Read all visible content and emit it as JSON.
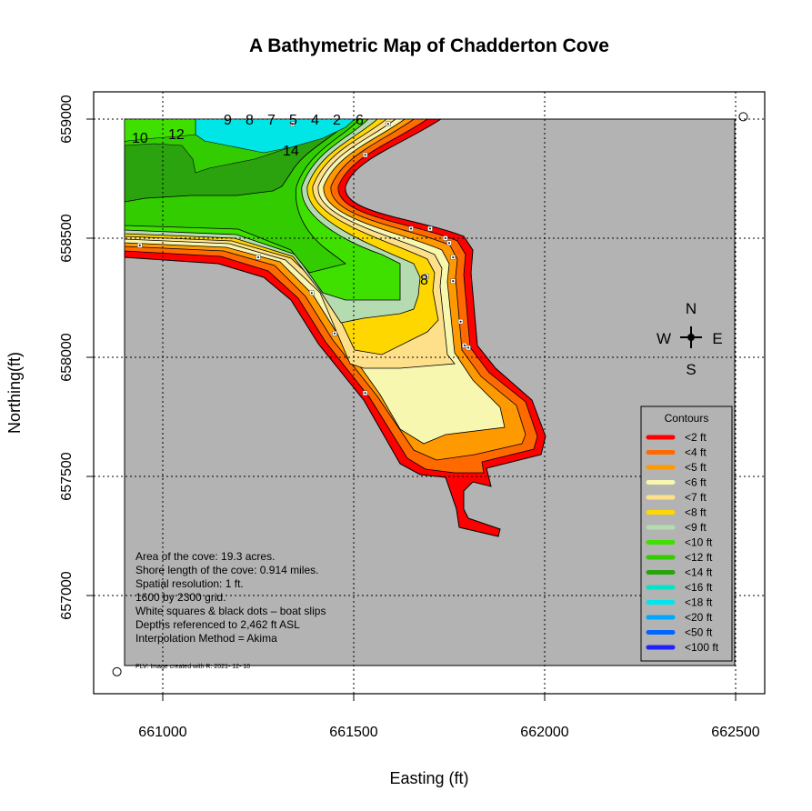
{
  "chart_data": {
    "type": "contour-map",
    "title": "A Bathymetric Map of  Chadderton Cove",
    "xlabel": "Easting (ft)",
    "ylabel": "Northing(ft)",
    "xlim": [
      660820,
      662580
    ],
    "ylim": [
      656630,
      659130
    ],
    "x_ticks": [
      "661000",
      "661500",
      "662000",
      "662500"
    ],
    "y_ticks": [
      "657000",
      "657500",
      "658000",
      "658500",
      "659000"
    ],
    "grid": "dotted",
    "land_color": "#b3b3b3",
    "legend": {
      "title": "Contours",
      "position": "bottom-right",
      "items": [
        {
          "label": "<2 ft",
          "color": "#ff0000"
        },
        {
          "label": "<4 ft",
          "color": "#ff6a00"
        },
        {
          "label": "<5 ft",
          "color": "#ff9900"
        },
        {
          "label": "<6 ft",
          "color": "#f7f7b0"
        },
        {
          "label": "<7 ft",
          "color": "#ffe08a"
        },
        {
          "label": "<8 ft",
          "color": "#ffd700"
        },
        {
          "label": "<9 ft",
          "color": "#b5dcb0"
        },
        {
          "label": "<10 ft",
          "color": "#3fe000"
        },
        {
          "label": "<12 ft",
          "color": "#33cc00"
        },
        {
          "label": "<14 ft",
          "color": "#2aa30f"
        },
        {
          "label": "<16 ft",
          "color": "#00e5c8"
        },
        {
          "label": "<18 ft",
          "color": "#00e5ee"
        },
        {
          "label": "<20 ft",
          "color": "#00a6ff"
        },
        {
          "label": "<50 ft",
          "color": "#0066ff"
        },
        {
          "label": "<100 ft",
          "color": "#2222ff"
        }
      ]
    },
    "contour_labels": [
      "9",
      "8",
      "7",
      "5",
      "4",
      "2",
      "6",
      "10",
      "12",
      "14",
      "8"
    ],
    "compass": [
      "N",
      "W",
      "E",
      "S"
    ],
    "notes": [
      "Area of the cove: 19.3 acres.",
      "Shore length of the cove: 0.914 miles.",
      "Spatial resolution: 1 ft.",
      "1600 by 2300 grid.",
      "White squares & black dots – boat slips",
      "Depths referenced to 2,462 ft ASL",
      "Interpolation Method =  Akima"
    ],
    "credit": "PLV: Image created with R: 2021- 12- 18",
    "boat_slips": [
      [
        661340,
        658980
      ],
      [
        661590,
        658980
      ],
      [
        661530,
        658850
      ],
      [
        661650,
        658540
      ],
      [
        661700,
        658540
      ],
      [
        661740,
        658500
      ],
      [
        661750,
        658480
      ],
      [
        661760,
        658420
      ],
      [
        661760,
        658320
      ],
      [
        661780,
        658150
      ],
      [
        661790,
        658050
      ],
      [
        661800,
        658040
      ],
      [
        660940,
        658470
      ],
      [
        661250,
        658420
      ],
      [
        661390,
        658270
      ],
      [
        661450,
        658100
      ],
      [
        661530,
        657850
      ],
      [
        661690,
        658340
      ]
    ],
    "corner_points": [
      [
        660880,
        656680
      ],
      [
        662520,
        659010
      ]
    ]
  }
}
